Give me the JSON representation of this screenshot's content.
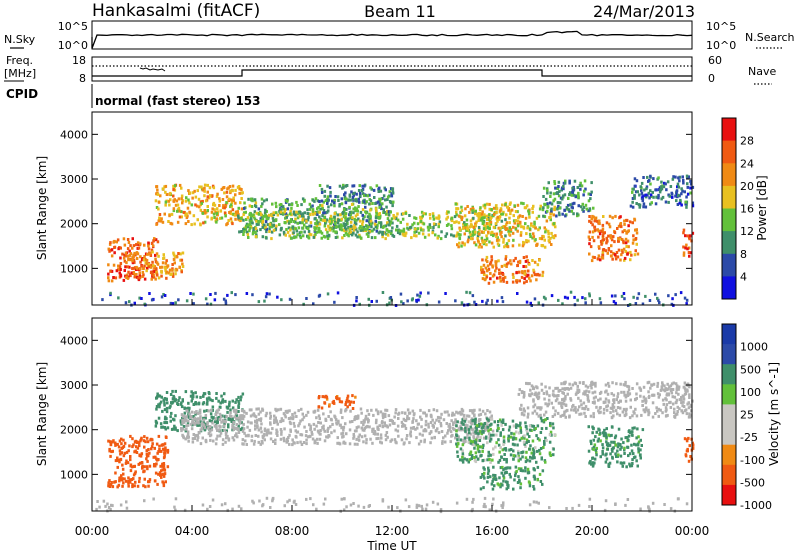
{
  "header": {
    "station": "Hankasalmi (fitACF)",
    "beam": "Beam 11",
    "date": "24/Mar/2013"
  },
  "summary": {
    "nsky_label": "N.Sky",
    "nsearch_label": "N.Search",
    "noise_ticks": [
      "10^5",
      "10^0"
    ],
    "freq_label_1": "Freq.",
    "freq_label_2": "[MHz]",
    "freq_ticks": [
      "18",
      "8"
    ],
    "nave_label": "Nave",
    "nave_ticks": [
      "60",
      "0"
    ],
    "cpid_label": "CPID",
    "cpid_text": "normal (fast stereo) 153"
  },
  "colors": {
    "power_scale": [
      "#1010e0",
      "#2c4aa8",
      "#3f8f6a",
      "#62c03a",
      "#e8c020",
      "#f08a14",
      "#f05a12",
      "#e81010"
    ],
    "velocity_scale": [
      "#e81010",
      "#f05a12",
      "#f08a14",
      "#c9c7c2",
      "#c9c7c2",
      "#62c03a",
      "#3f8f6a",
      "#2c4aa8",
      "#1a3aa8"
    ],
    "ground_scatter": "#b0b0b0"
  },
  "chart_data": [
    {
      "type": "heatmap",
      "name": "power",
      "ylabel": "Slant Range [km]",
      "colorbar_label": "Power [dB]",
      "colorbar_ticks": [
        "28",
        "24",
        "20",
        "16",
        "12",
        "8",
        "4"
      ],
      "y_ticks": [
        "4000",
        "3000",
        "2000",
        "1000"
      ],
      "ylim": [
        180,
        4500
      ],
      "xlim": [
        0,
        24
      ],
      "units_x": "hours UT",
      "colorbar_range": [
        0,
        32
      ],
      "blobs": [
        {
          "t0": 0.6,
          "t1": 2.6,
          "r0": 750,
          "r1": 1700,
          "power": 26
        },
        {
          "t0": 1.3,
          "t1": 3.6,
          "r0": 800,
          "r1": 1400,
          "power": 22
        },
        {
          "t0": 2.5,
          "t1": 6.0,
          "r0": 2000,
          "r1": 2900,
          "power": 20
        },
        {
          "t0": 5.8,
          "t1": 12.0,
          "r0": 1800,
          "r1": 2600,
          "power": 12
        },
        {
          "t0": 6.0,
          "t1": 16.5,
          "r0": 1700,
          "r1": 2300,
          "power": 14
        },
        {
          "t0": 9.0,
          "t1": 12.0,
          "r0": 2500,
          "r1": 2900,
          "power": 9
        },
        {
          "t0": 14.5,
          "t1": 18.5,
          "r0": 1500,
          "r1": 2500,
          "power": 18
        },
        {
          "t0": 15.5,
          "t1": 18.0,
          "r0": 700,
          "r1": 1300,
          "power": 24
        },
        {
          "t0": 18.0,
          "t1": 20.0,
          "r0": 2200,
          "r1": 3000,
          "power": 10
        },
        {
          "t0": 19.8,
          "t1": 21.8,
          "r0": 1200,
          "r1": 2200,
          "power": 24
        },
        {
          "t0": 21.5,
          "t1": 24.0,
          "r0": 2400,
          "r1": 3100,
          "power": 8
        },
        {
          "t0": 23.6,
          "t1": 24.0,
          "r0": 1300,
          "r1": 1900,
          "power": 26
        },
        {
          "t0": 0.0,
          "t1": 24.0,
          "r0": 200,
          "r1": 500,
          "power": 6
        }
      ]
    },
    {
      "type": "heatmap",
      "name": "velocity",
      "ylabel": "Slant Range [km]",
      "colorbar_label": "Velocity [m s^-1]",
      "colorbar_ticks": [
        "1000",
        "500",
        "100",
        "25",
        "-25",
        "-100",
        "-500",
        "-1000"
      ],
      "y_ticks": [
        "4000",
        "3000",
        "2000",
        "1000"
      ],
      "ylim": [
        180,
        4500
      ],
      "xlim": [
        0,
        24
      ],
      "colorbar_range": [
        -1000,
        1000
      ],
      "x_ticks": [
        "00:00",
        "04:00",
        "08:00",
        "12:00",
        "16:00",
        "20:00",
        "00:00"
      ],
      "xlabel": "Time UT",
      "blobs": [
        {
          "t0": 0.6,
          "t1": 3.0,
          "r0": 750,
          "r1": 1900,
          "velocity": -300,
          "gs": false
        },
        {
          "t0": 2.5,
          "t1": 6.0,
          "r0": 2000,
          "r1": 2900,
          "velocity": 300,
          "gs": false
        },
        {
          "t0": 3.5,
          "t1": 16.0,
          "r0": 1700,
          "r1": 2500,
          "velocity": 0,
          "gs": true
        },
        {
          "t0": 9.0,
          "t1": 10.5,
          "r0": 2500,
          "r1": 2800,
          "velocity": -200,
          "gs": false
        },
        {
          "t0": 14.5,
          "t1": 18.5,
          "r0": 1300,
          "r1": 2300,
          "velocity": 150,
          "gs": false
        },
        {
          "t0": 15.5,
          "t1": 18.0,
          "r0": 700,
          "r1": 1200,
          "velocity": 200,
          "gs": false
        },
        {
          "t0": 17.0,
          "t1": 24.0,
          "r0": 2300,
          "r1": 3100,
          "velocity": 0,
          "gs": true
        },
        {
          "t0": 19.8,
          "t1": 22.0,
          "r0": 1200,
          "r1": 2100,
          "velocity": 250,
          "gs": false
        },
        {
          "t0": 23.6,
          "t1": 24.0,
          "r0": 1300,
          "r1": 1900,
          "velocity": -300,
          "gs": false
        },
        {
          "t0": 0.0,
          "t1": 24.0,
          "r0": 200,
          "r1": 500,
          "velocity": 0,
          "gs": true
        }
      ]
    }
  ]
}
